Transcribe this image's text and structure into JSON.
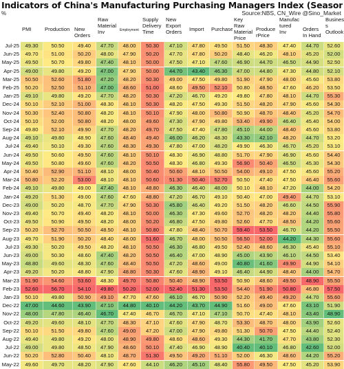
{
  "chart_data": {
    "type": "table",
    "title": "Indicators of China's Manufacturing Purchasing Managers Index (Seasonally Adjusted)",
    "unit": "%",
    "source": "Source:NBS, CN_Wire @Sino_Market",
    "columns": [
      "PMI",
      "Production",
      "New Orders",
      "Raw Material Inv",
      "Employment",
      "Supply Delivery Time",
      "New Export Orders",
      "Import",
      "Purchase",
      "Key Raw Material Price",
      "ProducerPrice",
      "Manufactured Inv",
      "Orders In Hand",
      "Business Outlook"
    ],
    "rows": [
      {
        "label": "Jul-25",
        "values": [
          49.3,
          50.5,
          49.4,
          47.7,
          48.0,
          50.3,
          47.1,
          47.8,
          49.5,
          51.5,
          48.3,
          47.4,
          44.7,
          52.6
        ]
      },
      {
        "label": "Jun-25",
        "values": [
          49.7,
          51.0,
          50.2,
          48.0,
          47.9,
          50.2,
          47.7,
          47.8,
          50.2,
          48.4,
          46.2,
          48.1,
          45.2,
          52.0
        ]
      },
      {
        "label": "May-25",
        "values": [
          49.5,
          50.7,
          49.8,
          47.4,
          48.1,
          50.0,
          47.5,
          47.1,
          47.6,
          46.9,
          44.7,
          46.5,
          44.9,
          52.5
        ]
      },
      {
        "label": "Apr-25",
        "values": [
          49.0,
          49.8,
          49.2,
          47.0,
          47.9,
          50.0,
          44.7,
          43.4,
          46.3,
          47.0,
          44.8,
          47.3,
          44.8,
          52.1
        ]
      },
      {
        "label": "Mar-25",
        "values": [
          50.5,
          52.6,
          51.8,
          47.2,
          48.2,
          50.3,
          49.0,
          47.5,
          49.8,
          51.9,
          47.9,
          48.0,
          45.6,
          53.8
        ]
      },
      {
        "label": "Feb-25",
        "values": [
          50.2,
          52.5,
          51.1,
          47.0,
          48.6,
          51.0,
          48.6,
          49.5,
          52.1,
          50.8,
          48.5,
          47.6,
          46.2,
          53.5
        ]
      },
      {
        "label": "Jan-25",
        "values": [
          49.1,
          49.8,
          49.2,
          47.7,
          48.2,
          50.3,
          47.2,
          46.7,
          49.2,
          49.8,
          47.8,
          48.1,
          44.7,
          55.3
        ]
      },
      {
        "label": "Dec-24",
        "values": [
          50.1,
          52.1,
          51.0,
          48.3,
          48.1,
          50.3,
          48.2,
          47.5,
          49.3,
          51.5,
          48.2,
          47.9,
          45.6,
          54.3
        ]
      },
      {
        "label": "Nov-24",
        "values": [
          50.3,
          52.4,
          50.8,
          48.2,
          48.1,
          50.1,
          47.9,
          48.0,
          50.8,
          50.9,
          48.7,
          48.4,
          45.2,
          54.7
        ]
      },
      {
        "label": "Oct-24",
        "values": [
          50.1,
          52.0,
          50.8,
          48.2,
          48.0,
          49.6,
          47.3,
          47.9,
          49.8,
          53.4,
          49.9,
          46.4,
          45.4,
          54.0
        ]
      },
      {
        "label": "Sep-24",
        "values": [
          49.8,
          52.1,
          49.9,
          47.7,
          48.2,
          49.7,
          47.5,
          47.4,
          47.8,
          45.1,
          44.0,
          48.4,
          45.6,
          53.8
        ]
      },
      {
        "label": "Aug-24",
        "values": [
          49.1,
          49.8,
          48.9,
          47.6,
          48.4,
          49.4,
          46.0,
          46.2,
          48.3,
          43.3,
          42.1,
          48.2,
          44.7,
          53.2
        ]
      },
      {
        "label": "Jul-24",
        "values": [
          49.4,
          50.1,
          49.3,
          47.6,
          48.3,
          49.3,
          47.8,
          47.0,
          48.2,
          49.9,
          46.3,
          46.7,
          45.2,
          53.1
        ]
      },
      {
        "label": "Jun-24",
        "values": [
          49.5,
          50.6,
          49.5,
          47.6,
          48.1,
          50.1,
          48.3,
          46.9,
          48.8,
          51.7,
          47.9,
          46.9,
          45.6,
          54.4
        ]
      },
      {
        "label": "May-24",
        "values": [
          49.5,
          50.8,
          49.6,
          47.6,
          48.2,
          50.5,
          48.3,
          46.8,
          49.3,
          56.9,
          50.4,
          46.5,
          45.3,
          54.3
        ]
      },
      {
        "label": "Apr-24",
        "values": [
          50.4,
          52.9,
          51.1,
          48.1,
          48.0,
          50.4,
          50.6,
          48.1,
          50.5,
          54.0,
          49.1,
          47.5,
          45.6,
          55.2
        ]
      },
      {
        "label": "Mar-24",
        "values": [
          50.8,
          52.2,
          53.0,
          48.1,
          48.1,
          50.6,
          51.3,
          50.4,
          52.7,
          50.5,
          47.4,
          47.5,
          46.4,
          55.6
        ]
      },
      {
        "label": "Feb-24",
        "values": [
          49.1,
          49.8,
          49.0,
          47.4,
          48.1,
          48.8,
          46.3,
          46.4,
          48.0,
          50.1,
          48.1,
          47.2,
          44.0,
          54.2
        ]
      },
      {
        "label": "Jan-24",
        "values": [
          49.2,
          51.3,
          49.0,
          47.6,
          47.6,
          48.8,
          47.2,
          46.7,
          49.1,
          50.4,
          47.0,
          49.4,
          44.7,
          53.1
        ]
      },
      {
        "label": "Dec-23",
        "values": [
          49.0,
          50.2,
          48.7,
          47.7,
          47.9,
          50.3,
          45.8,
          46.4,
          49.2,
          51.5,
          48.2,
          46.6,
          44.5,
          55.9
        ]
      },
      {
        "label": "Nov-23",
        "values": [
          49.4,
          50.7,
          49.4,
          48.2,
          48.1,
          50.0,
          46.3,
          47.3,
          49.6,
          52.7,
          48.2,
          48.2,
          44.4,
          55.8
        ]
      },
      {
        "label": "Oct-23",
        "values": [
          49.5,
          50.9,
          49.5,
          48.2,
          48.0,
          50.2,
          46.8,
          47.5,
          49.8,
          52.6,
          47.7,
          48.5,
          44.2,
          55.6
        ]
      },
      {
        "label": "Sep-23",
        "values": [
          50.2,
          52.7,
          50.5,
          48.5,
          48.1,
          50.8,
          47.8,
          48.4,
          50.7,
          59.4,
          53.5,
          46.7,
          44.2,
          55.5
        ]
      },
      {
        "label": "Aug-23",
        "values": [
          49.7,
          51.9,
          50.2,
          48.4,
          48.0,
          51.6,
          46.7,
          48.0,
          50.5,
          56.5,
          52.0,
          44.2,
          44.3,
          55.6
        ]
      },
      {
        "label": "Jul-23",
        "values": [
          49.3,
          50.2,
          49.5,
          48.2,
          48.1,
          50.5,
          46.3,
          46.8,
          49.5,
          52.4,
          48.6,
          46.3,
          45.4,
          55.1
        ]
      },
      {
        "label": "Jun-23",
        "values": [
          49.0,
          50.3,
          48.6,
          47.4,
          48.2,
          50.5,
          46.4,
          47.0,
          48.9,
          45.0,
          43.9,
          46.1,
          44.5,
          53.4
        ]
      },
      {
        "label": "May-23",
        "values": [
          48.8,
          49.6,
          48.3,
          47.6,
          48.4,
          50.5,
          47.2,
          48.6,
          49.0,
          40.8,
          41.6,
          49.9,
          44.9,
          54.1
        ]
      },
      {
        "label": "Apr-23",
        "values": [
          49.2,
          50.2,
          48.8,
          47.9,
          48.8,
          50.3,
          47.6,
          48.9,
          49.1,
          46.4,
          44.9,
          48.4,
          44.0,
          54.7
        ]
      },
      {
        "label": "Mar-23",
        "values": [
          51.9,
          54.6,
          53.6,
          48.3,
          49.7,
          50.8,
          50.4,
          48.9,
          53.5,
          50.9,
          48.6,
          49.5,
          48.9,
          55.5
        ]
      },
      {
        "label": "Feb-23",
        "values": [
          52.6,
          56.7,
          54.1,
          49.8,
          50.2,
          52.0,
          52.4,
          51.3,
          53.5,
          54.4,
          51.9,
          50.8,
          46.8,
          57.5
        ]
      },
      {
        "label": "Jan-23",
        "values": [
          50.1,
          49.8,
          50.9,
          49.1,
          47.7,
          47.6,
          46.1,
          46.7,
          50.9,
          52.2,
          49.4,
          49.2,
          44.7,
          55.6
        ]
      },
      {
        "label": "Dec-22",
        "values": [
          47.0,
          44.6,
          43.9,
          47.1,
          44.8,
          40.1,
          44.2,
          43.7,
          44.9,
          51.6,
          49.0,
          47.6,
          43.1,
          51.9
        ]
      },
      {
        "label": "Nov-22",
        "values": [
          48.0,
          47.8,
          46.4,
          46.7,
          47.4,
          46.7,
          46.7,
          47.1,
          47.1,
          50.7,
          47.4,
          48.1,
          43.4,
          48.9
        ]
      },
      {
        "label": "Oct-22",
        "values": [
          49.2,
          49.6,
          48.1,
          47.7,
          48.3,
          47.1,
          47.6,
          47.9,
          48.7,
          53.3,
          48.7,
          48.0,
          43.9,
          52.6
        ]
      },
      {
        "label": "Sep-22",
        "values": [
          50.1,
          51.5,
          49.8,
          47.6,
          49.0,
          47.2,
          47.0,
          47.9,
          49.8,
          51.3,
          50.7,
          47.5,
          44.4,
          52.4
        ]
      },
      {
        "label": "Aug-22",
        "values": [
          49.4,
          49.8,
          49.2,
          48.0,
          48.9,
          49.8,
          48.6,
          48.6,
          49.3,
          44.3,
          41.7,
          47.7,
          43.8,
          52.3
        ]
      },
      {
        "label": "Jul-22",
        "values": [
          49.0,
          49.8,
          48.5,
          47.9,
          48.6,
          50.1,
          47.4,
          46.9,
          48.9,
          40.4,
          40.1,
          46.8,
          42.6,
          52.0
        ]
      },
      {
        "label": "Jun-22",
        "values": [
          50.2,
          52.8,
          50.4,
          48.1,
          48.7,
          51.3,
          49.5,
          49.2,
          51.1,
          52.0,
          46.3,
          48.6,
          44.2,
          55.2
        ]
      },
      {
        "label": "May-22",
        "values": [
          49.6,
          49.7,
          48.2,
          47.9,
          47.6,
          44.1,
          46.2,
          45.1,
          48.4,
          55.8,
          49.5,
          47.5,
          45.2,
          53.9
        ]
      }
    ]
  }
}
